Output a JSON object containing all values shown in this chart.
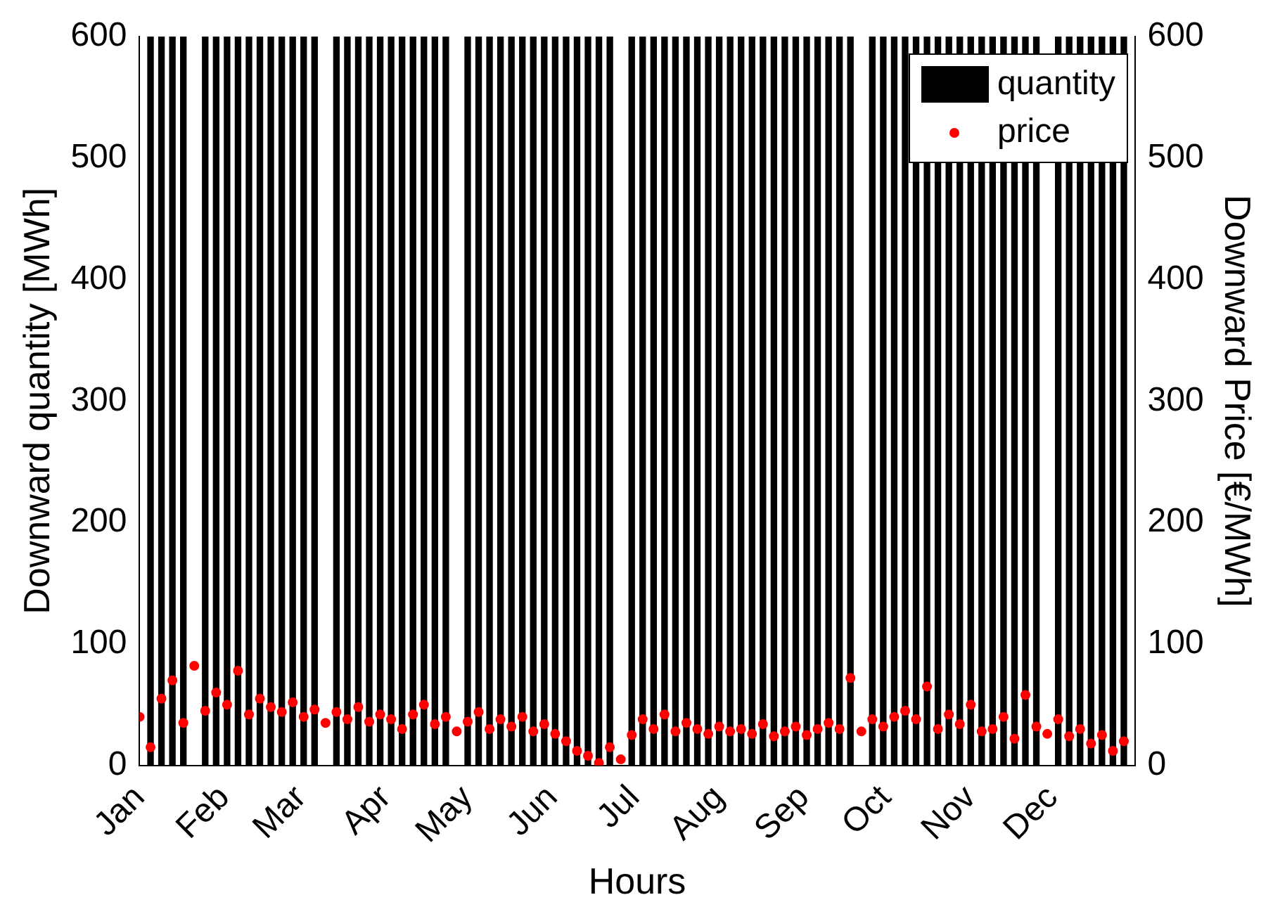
{
  "chart_data": {
    "type": "bar",
    "xlabel": "Hours",
    "ylabel": "Downward quantity [MWh]",
    "y2label": "Downward Price [€/MWh]",
    "xlim": [
      "--01-01",
      "--12-31"
    ],
    "xticks": [
      {
        "value": "--01-01",
        "label": "Jan"
      },
      {
        "value": "--02-01",
        "label": "Feb"
      },
      {
        "value": "--03-01",
        "label": "Mar"
      },
      {
        "value": "--04-01",
        "label": "Apr"
      },
      {
        "value": "--05-01",
        "label": "May"
      },
      {
        "value": "--06-01",
        "label": "Jun"
      },
      {
        "value": "--07-01",
        "label": "Jul"
      },
      {
        "value": "--08-01",
        "label": "Aug"
      },
      {
        "value": "--09-01",
        "label": "Sep"
      },
      {
        "value": "--10-01",
        "label": "Oct"
      },
      {
        "value": "--11-01",
        "label": "Nov"
      },
      {
        "value": "--12-01",
        "label": "Dec"
      }
    ],
    "ylim": [
      0,
      600
    ],
    "yticks": [
      0,
      100,
      200,
      300,
      400,
      500,
      600
    ],
    "y2lim": [
      0,
      600
    ],
    "y2ticks": [
      0,
      100,
      200,
      300,
      400,
      500,
      600
    ],
    "grid": false,
    "legend": "top right",
    "series": [
      {
        "name": "quantity",
        "color": "#000000",
        "x": [
          "--01-01",
          "--01-05",
          "--01-09",
          "--01-13",
          "--01-17",
          "--01-21",
          "--01-25",
          "--01-29",
          "--02-02",
          "--02-06",
          "--02-10",
          "--02-14",
          "--02-18",
          "--02-22",
          "--02-26",
          "--03-02",
          "--03-06",
          "--03-10",
          "--03-14",
          "--03-18",
          "--03-22",
          "--03-26",
          "--03-30",
          "--04-03",
          "--04-07",
          "--04-11",
          "--04-15",
          "--04-19",
          "--04-23",
          "--04-27",
          "--05-01",
          "--05-05",
          "--05-09",
          "--05-13",
          "--05-17",
          "--05-21",
          "--05-25",
          "--05-29",
          "--06-02",
          "--06-06",
          "--06-10",
          "--06-14",
          "--06-18",
          "--06-22",
          "--06-26",
          "--06-30",
          "--07-04",
          "--07-08",
          "--07-12",
          "--07-16",
          "--07-20",
          "--07-24",
          "--07-28",
          "--08-01",
          "--08-05",
          "--08-09",
          "--08-13",
          "--08-17",
          "--08-21",
          "--08-25",
          "--08-29",
          "--09-02",
          "--09-06",
          "--09-10",
          "--09-14",
          "--09-18",
          "--09-22",
          "--09-26",
          "--09-30",
          "--10-04",
          "--10-08",
          "--10-12",
          "--10-16",
          "--10-20",
          "--10-24",
          "--10-28",
          "--11-01",
          "--11-05",
          "--11-09",
          "--11-13",
          "--11-17",
          "--11-21",
          "--11-25",
          "--11-29",
          "--12-03",
          "--12-07",
          "--12-11",
          "--12-15",
          "--12-19",
          "--12-23",
          "--12-27"
        ],
        "values": [
          0,
          600,
          600,
          600,
          600,
          0,
          600,
          600,
          600,
          600,
          600,
          600,
          600,
          600,
          600,
          600,
          600,
          0,
          600,
          600,
          600,
          600,
          600,
          600,
          600,
          600,
          600,
          600,
          600,
          0,
          600,
          600,
          600,
          600,
          600,
          600,
          600,
          600,
          600,
          600,
          600,
          600,
          600,
          600,
          0,
          600,
          600,
          600,
          600,
          600,
          600,
          600,
          600,
          600,
          600,
          600,
          600,
          600,
          600,
          600,
          600,
          600,
          600,
          600,
          600,
          600,
          0,
          600,
          600,
          600,
          600,
          600,
          600,
          600,
          600,
          600,
          600,
          600,
          600,
          600,
          600,
          600,
          600,
          0,
          600,
          600,
          600,
          600,
          600,
          600,
          600
        ]
      },
      {
        "name": "price",
        "type": "scatter",
        "color": "#ff0000",
        "axis": "y2",
        "marker": "circle",
        "x": [
          "--01-01",
          "--01-05",
          "--01-09",
          "--01-13",
          "--01-17",
          "--01-21",
          "--01-25",
          "--01-29",
          "--02-02",
          "--02-06",
          "--02-10",
          "--02-14",
          "--02-18",
          "--02-22",
          "--02-26",
          "--03-02",
          "--03-06",
          "--03-10",
          "--03-14",
          "--03-18",
          "--03-22",
          "--03-26",
          "--03-30",
          "--04-03",
          "--04-07",
          "--04-11",
          "--04-15",
          "--04-19",
          "--04-23",
          "--04-27",
          "--05-01",
          "--05-05",
          "--05-09",
          "--05-13",
          "--05-17",
          "--05-21",
          "--05-25",
          "--05-29",
          "--06-02",
          "--06-06",
          "--06-10",
          "--06-14",
          "--06-18",
          "--06-22",
          "--06-26",
          "--06-30",
          "--07-04",
          "--07-08",
          "--07-12",
          "--07-16",
          "--07-20",
          "--07-24",
          "--07-28",
          "--08-01",
          "--08-05",
          "--08-09",
          "--08-13",
          "--08-17",
          "--08-21",
          "--08-25",
          "--08-29",
          "--09-02",
          "--09-06",
          "--09-10",
          "--09-14",
          "--09-18",
          "--09-22",
          "--09-26",
          "--09-30",
          "--10-04",
          "--10-08",
          "--10-12",
          "--10-16",
          "--10-20",
          "--10-24",
          "--10-28",
          "--11-01",
          "--11-05",
          "--11-09",
          "--11-13",
          "--11-17",
          "--11-21",
          "--11-25",
          "--11-29",
          "--12-03",
          "--12-07",
          "--12-11",
          "--12-15",
          "--12-19",
          "--12-23",
          "--12-27"
        ],
        "values": [
          40,
          15,
          55,
          70,
          35,
          82,
          45,
          60,
          50,
          78,
          42,
          55,
          48,
          44,
          52,
          40,
          46,
          35,
          44,
          38,
          48,
          36,
          42,
          38,
          30,
          42,
          50,
          34,
          40,
          28,
          36,
          44,
          30,
          38,
          32,
          40,
          28,
          34,
          26,
          20,
          12,
          8,
          2,
          15,
          5,
          25,
          38,
          30,
          42,
          28,
          35,
          30,
          26,
          32,
          28,
          30,
          26,
          34,
          24,
          28,
          32,
          25,
          30,
          35,
          30,
          72,
          28,
          38,
          32,
          40,
          45,
          38,
          65,
          30,
          42,
          34,
          50,
          28,
          30,
          40,
          22,
          58,
          32,
          26,
          38,
          24,
          30,
          18,
          25,
          12,
          20
        ]
      }
    ]
  }
}
